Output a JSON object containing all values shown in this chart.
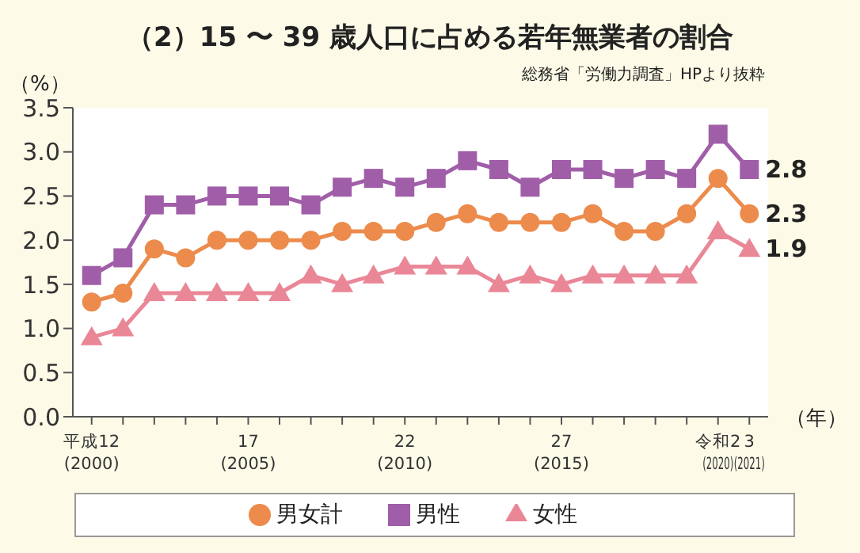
{
  "chart_data": {
    "type": "line",
    "title": "（2）15 〜 39 歳人口に占める若年無業者の割合",
    "subtitle": "総務省「労働力調査」HPより抜粋",
    "ylabel": "（%）",
    "xlabel": "（年）",
    "categories": [
      "平成12\n(2000)",
      null,
      null,
      null,
      null,
      "17\n(2005)",
      null,
      null,
      null,
      null,
      "22\n(2010)",
      null,
      null,
      null,
      null,
      "27\n(2015)",
      null,
      null,
      null,
      null,
      "令和2\n(2020)",
      "3\n(2021)"
    ],
    "series": [
      {
        "name": "男女計",
        "color": "#ec8b4c",
        "marker": "circle",
        "values": [
          1.3,
          1.4,
          1.9,
          1.8,
          2.0,
          2.0,
          2.0,
          2.0,
          2.1,
          2.1,
          2.1,
          2.2,
          2.3,
          2.2,
          2.2,
          2.2,
          2.3,
          2.1,
          2.1,
          2.3,
          2.7,
          2.3
        ],
        "value_labels": [
          null,
          null,
          null,
          null,
          null,
          null,
          null,
          null,
          null,
          null,
          null,
          null,
          null,
          null,
          null,
          null,
          null,
          null,
          null,
          null,
          null,
          "2.3"
        ]
      },
      {
        "name": "男性",
        "color": "#a05ea8",
        "marker": "square",
        "values": [
          1.6,
          1.8,
          2.4,
          2.4,
          2.5,
          2.5,
          2.5,
          2.4,
          2.6,
          2.7,
          2.6,
          2.7,
          2.9,
          2.8,
          2.6,
          2.8,
          2.8,
          2.7,
          2.8,
          2.7,
          3.2,
          2.8
        ],
        "value_labels": [
          null,
          null,
          null,
          null,
          null,
          null,
          null,
          null,
          null,
          null,
          null,
          null,
          null,
          null,
          null,
          null,
          null,
          null,
          null,
          null,
          null,
          "2.8"
        ]
      },
      {
        "name": "女性",
        "color": "#ea8797",
        "marker": "triangle",
        "values": [
          0.9,
          1.0,
          1.4,
          1.4,
          1.4,
          1.4,
          1.4,
          1.6,
          1.5,
          1.6,
          1.7,
          1.7,
          1.7,
          1.5,
          1.6,
          1.5,
          1.6,
          1.6,
          1.6,
          1.6,
          2.1,
          1.9
        ],
        "value_labels": [
          null,
          null,
          null,
          null,
          null,
          null,
          null,
          null,
          null,
          null,
          null,
          null,
          null,
          null,
          null,
          null,
          null,
          null,
          null,
          null,
          null,
          "1.9"
        ]
      }
    ],
    "ylim": [
      0,
      3.5
    ],
    "yticks": [
      {
        "value": 0,
        "label": "0.0"
      },
      {
        "value": 0.5,
        "label": "0.5"
      },
      {
        "value": 1,
        "label": "1.0"
      },
      {
        "value": 1.5,
        "label": "1.5"
      },
      {
        "value": 2,
        "label": "2.0"
      },
      {
        "value": 2.5,
        "label": "2.5"
      },
      {
        "value": 3,
        "label": "3.0"
      },
      {
        "value": 3.5,
        "label": "3.5"
      }
    ],
    "grid": false,
    "legend": "bottom",
    "line_style": "solid"
  }
}
